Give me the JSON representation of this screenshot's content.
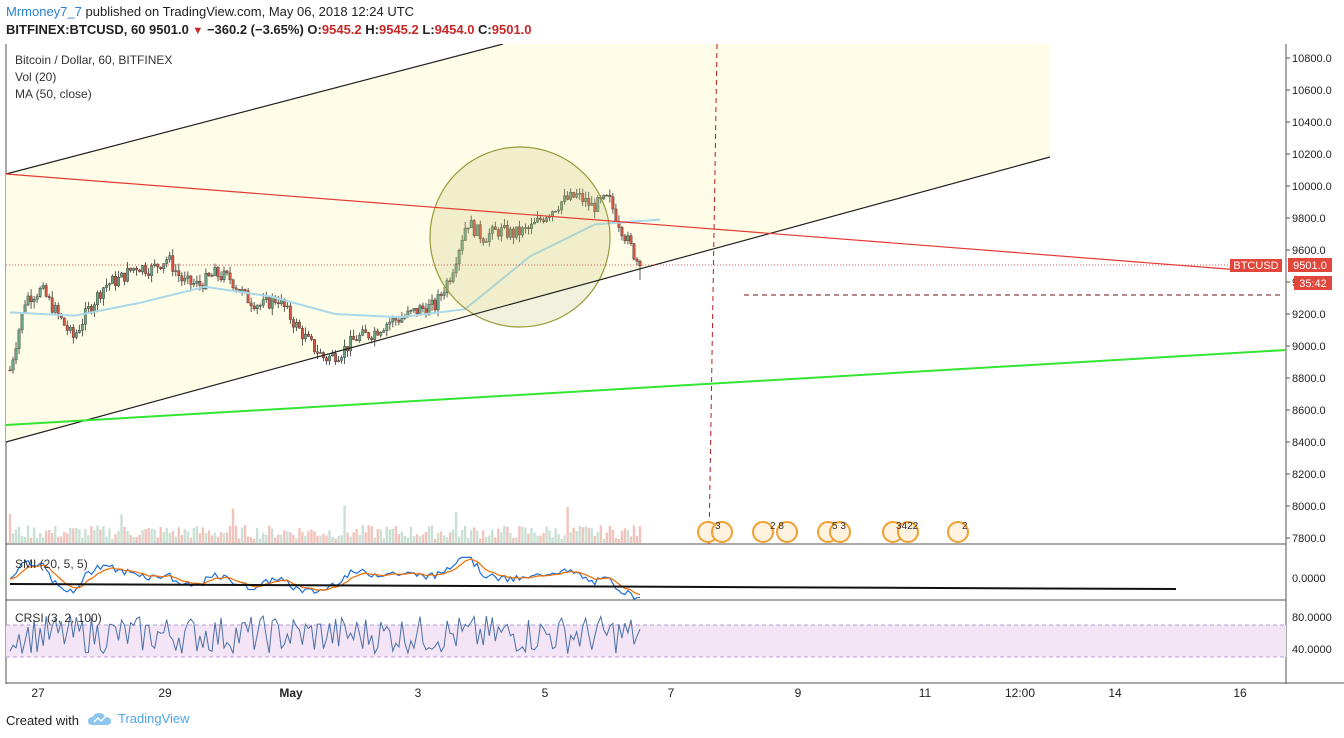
{
  "header": {
    "author": "Mrmoney7_7",
    "published_text": "published on TradingView.com, May 06, 2018 12:24 UTC",
    "symbol_line": "BITFINEX:BTCUSD, 60",
    "last": "9501.0",
    "change": "−360.2 (−3.65%)",
    "o_label": "O:",
    "o": "9545.2",
    "h_label": "H:",
    "h": "9545.2",
    "l_label": "L:",
    "l": "9454.0",
    "c_label": "C:",
    "c": "9501.0"
  },
  "legend": {
    "title": "Bitcoin / Dollar, 60, BITFINEX",
    "vol": "Vol (20)",
    "ma": "MA (50, close)",
    "smi": "SMI (20, 5, 5)",
    "crsi": "CRSI (3, 2, 100)"
  },
  "price_axis": {
    "ticks": [
      "10800.0",
      "10600.0",
      "10400.0",
      "10200.0",
      "10000.0",
      "9800.0",
      "9600.0",
      "9400.0",
      "9200.0",
      "9000.0",
      "8800.0",
      "8600.0",
      "8400.0",
      "8200.0",
      "8000.0",
      "7800.0"
    ],
    "badge_symbol": "BTCUSD",
    "badge_price": "9501.0",
    "badge_timer": "35:42"
  },
  "smi_axis": {
    "ticks": [
      "0.0000"
    ]
  },
  "crsi_axis": {
    "ticks": [
      "80.0000",
      "40.0000"
    ]
  },
  "time_axis": {
    "ticks": [
      "27",
      "29",
      "May",
      "3",
      "5",
      "7",
      "9",
      "11",
      "12:00",
      "14",
      "16"
    ]
  },
  "events": [
    {
      "label": "3"
    },
    {
      "label": "2  8"
    },
    {
      "label": "5  3"
    },
    {
      "label": "3422"
    },
    {
      "label": "2"
    }
  ],
  "footer": {
    "created_with": "Created with",
    "brand": "TradingView"
  },
  "colors": {
    "up_candle": "#6ba583",
    "down_candle": "#d75442",
    "ma": "#a8d8ea",
    "trend_red": "#e53935",
    "trend_green": "#33e633",
    "channel_fill": "#fffde7",
    "crsi_band": "#f3e5f5",
    "badge": "#e0473a"
  },
  "chart_data": {
    "type": "candlestick",
    "instrument": "BITFINEX:BTCUSD",
    "interval": "60",
    "ylim": [
      7760,
      10880
    ],
    "y_ticks": [
      7800,
      8000,
      8200,
      8400,
      8600,
      8800,
      9000,
      9200,
      9400,
      9600,
      9800,
      10000,
      10200,
      10400,
      10600,
      10800
    ],
    "last_price": 9501.0,
    "close_path": [
      [
        "Apr 26 12:00",
        8850
      ],
      [
        "Apr 26 18:00",
        9300
      ],
      [
        "Apr 27 00:00",
        9350
      ],
      [
        "Apr 27 06:00",
        9200
      ],
      [
        "Apr 27 12:00",
        9050
      ],
      [
        "Apr 27 18:00",
        9230
      ],
      [
        "Apr 28 00:00",
        9380
      ],
      [
        "Apr 28 06:00",
        9420
      ],
      [
        "Apr 28 12:00",
        9500
      ],
      [
        "Apr 28 18:00",
        9480
      ],
      [
        "Apr 29 00:00",
        9550
      ],
      [
        "Apr 29 06:00",
        9400
      ],
      [
        "Apr 29 12:00",
        9380
      ],
      [
        "Apr 29 18:00",
        9450
      ],
      [
        "Apr 30 00:00",
        9420
      ],
      [
        "Apr 30 06:00",
        9300
      ],
      [
        "Apr 30 12:00",
        9250
      ],
      [
        "Apr 30 18:00",
        9300
      ],
      [
        "May 1 00:00",
        9150
      ],
      [
        "May 1 06:00",
        9020
      ],
      [
        "May 1 12:00",
        8920
      ],
      [
        "May 1 18:00",
        8960
      ],
      [
        "May 2 00:00",
        9050
      ],
      [
        "May 2 06:00",
        9080
      ],
      [
        "May 2 12:00",
        9150
      ],
      [
        "May 2 18:00",
        9180
      ],
      [
        "May 3 00:00",
        9230
      ],
      [
        "May 3 06:00",
        9250
      ],
      [
        "May 3 12:00",
        9450
      ],
      [
        "May 3 18:00",
        9780
      ],
      [
        "May 4 00:00",
        9680
      ],
      [
        "May 4 06:00",
        9720
      ],
      [
        "May 4 12:00",
        9700
      ],
      [
        "May 4 18:00",
        9730
      ],
      [
        "May 5 00:00",
        9820
      ],
      [
        "May 5 06:00",
        9900
      ],
      [
        "May 5 12:00",
        9940
      ],
      [
        "May 5 18:00",
        9870
      ],
      [
        "May 6 00:00",
        9920
      ],
      [
        "May 6 06:00",
        9700
      ],
      [
        "May 6 12:00",
        9501
      ]
    ],
    "ma50_path": [
      [
        "Apr 26 12:00",
        9210
      ],
      [
        "Apr 27 12:00",
        9190
      ],
      [
        "Apr 28 12:00",
        9270
      ],
      [
        "Apr 29 12:00",
        9370
      ],
      [
        "Apr 30 12:00",
        9310
      ],
      [
        "May 1 12:00",
        9200
      ],
      [
        "May 2 12:00",
        9180
      ],
      [
        "May 3 12:00",
        9230
      ],
      [
        "May 4 12:00",
        9560
      ],
      [
        "May 5 12:00",
        9760
      ],
      [
        "May 6 06:00",
        9790
      ]
    ]
  }
}
